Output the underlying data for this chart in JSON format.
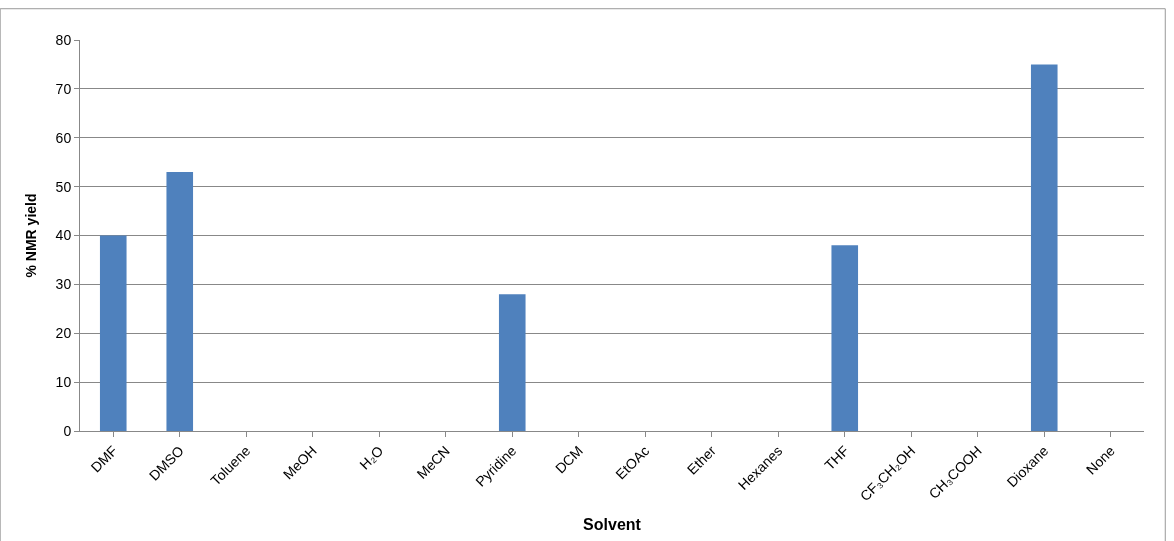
{
  "chart_data": {
    "type": "bar",
    "xlabel": "Solvent",
    "ylabel": "% NMR yield",
    "categories": [
      "DMF",
      "DMSO",
      "Toluene",
      "MeOH",
      "H₂O",
      "MeCN",
      "Pyridine",
      "DCM",
      "EtOAc",
      "Ether",
      "Hexanes",
      "THF",
      "CF₃CH₂OH",
      "CH₃COOH",
      "Dioxane",
      "None"
    ],
    "values": [
      40,
      53,
      0,
      0,
      0,
      0,
      28,
      0,
      0,
      0,
      0,
      38,
      0,
      0,
      75,
      0
    ],
    "color": "#4f81bd",
    "ylim": [
      0,
      80
    ],
    "yticks": [
      0,
      10,
      20,
      30,
      40,
      50,
      60,
      70,
      80
    ],
    "grid": "y"
  }
}
